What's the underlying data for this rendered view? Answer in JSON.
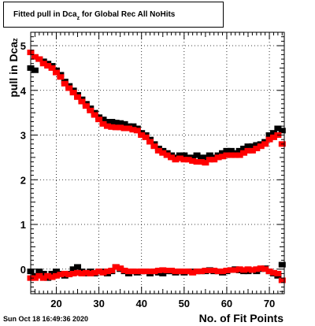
{
  "title": {
    "prefix": "Fitted pull in Dca",
    "subscript": "z",
    "suffix": " for Global Rec All NoHits"
  },
  "ylabel": {
    "main": "pull in Dca",
    "subscript": "z"
  },
  "xlabel": "No. of Fit Points",
  "datestamp": "Sun Oct 18 16:49:36 2020",
  "colors": {
    "series_black": "#000000",
    "series_red": "#ff0000",
    "grid": "#000000",
    "axis": "#000000"
  },
  "chart_data": {
    "type": "scatter",
    "xlabel": "No. of Fit Points",
    "ylabel": "pull in Dca_z",
    "xlim": [
      14,
      73.5
    ],
    "ylim": [
      -0.55,
      5.3
    ],
    "grid": true,
    "x_ticks": [
      20,
      30,
      40,
      50,
      60,
      70
    ],
    "y_ticks": [
      0,
      1,
      2,
      3,
      4,
      5
    ],
    "series": [
      {
        "color": "#000000",
        "x": [
          14,
          15,
          16,
          17,
          18,
          19,
          20,
          21,
          22,
          23,
          24,
          25,
          26,
          27,
          28,
          29,
          30,
          31,
          32,
          33,
          34,
          35,
          36,
          37,
          38,
          39,
          40,
          41,
          42,
          43,
          44,
          45,
          46,
          47,
          48,
          49,
          50,
          51,
          52,
          53,
          54,
          55,
          56,
          57,
          58,
          59,
          60,
          61,
          62,
          63,
          64,
          65,
          66,
          67,
          68,
          69,
          70,
          71,
          72,
          73
        ],
        "y": [
          4.5,
          4.45,
          4.7,
          4.65,
          4.6,
          4.55,
          4.45,
          4.35,
          4.2,
          4.1,
          4.0,
          3.9,
          3.8,
          3.7,
          3.6,
          3.5,
          3.4,
          3.35,
          3.3,
          3.3,
          3.28,
          3.27,
          3.25,
          3.2,
          3.2,
          3.15,
          3.05,
          3.0,
          2.9,
          2.8,
          2.7,
          2.65,
          2.6,
          2.55,
          2.5,
          2.55,
          2.55,
          2.5,
          2.5,
          2.55,
          2.5,
          2.5,
          2.55,
          2.5,
          2.55,
          2.6,
          2.65,
          2.65,
          2.6,
          2.65,
          2.7,
          2.75,
          2.75,
          2.78,
          2.8,
          2.85,
          3.0,
          3.05,
          3.15,
          3.1
        ]
      },
      {
        "color": "#ff0000",
        "x": [
          14,
          15,
          16,
          17,
          18,
          19,
          20,
          21,
          22,
          23,
          24,
          25,
          26,
          27,
          28,
          29,
          30,
          31,
          32,
          33,
          34,
          35,
          36,
          37,
          38,
          39,
          40,
          41,
          42,
          43,
          44,
          45,
          46,
          47,
          48,
          49,
          50,
          51,
          52,
          53,
          54,
          55,
          56,
          57,
          58,
          59,
          60,
          61,
          62,
          63,
          64,
          65,
          66,
          67,
          68,
          69,
          70,
          71,
          72,
          73
        ],
        "y": [
          4.85,
          4.75,
          4.7,
          4.6,
          4.55,
          4.5,
          4.4,
          4.3,
          4.15,
          4.05,
          3.95,
          3.85,
          3.75,
          3.65,
          3.55,
          3.45,
          3.35,
          3.25,
          3.2,
          3.18,
          3.17,
          3.17,
          3.15,
          3.15,
          3.12,
          3.1,
          3.0,
          2.95,
          2.85,
          2.75,
          2.65,
          2.6,
          2.55,
          2.5,
          2.45,
          2.48,
          2.45,
          2.45,
          2.42,
          2.4,
          2.4,
          2.38,
          2.45,
          2.45,
          2.5,
          2.52,
          2.55,
          2.55,
          2.55,
          2.55,
          2.6,
          2.65,
          2.65,
          2.7,
          2.75,
          2.8,
          2.9,
          2.95,
          3.0,
          2.8
        ]
      },
      {
        "color": "#000000",
        "x": [
          14,
          15,
          16,
          17,
          18,
          19,
          20,
          21,
          22,
          23,
          24,
          25,
          26,
          27,
          28,
          29,
          30,
          31,
          32,
          33,
          34,
          35,
          36,
          37,
          38,
          39,
          40,
          41,
          42,
          43,
          44,
          45,
          46,
          47,
          48,
          49,
          50,
          51,
          52,
          53,
          54,
          55,
          56,
          57,
          58,
          59,
          60,
          61,
          62,
          63,
          64,
          65,
          66,
          67,
          68,
          69,
          70,
          71,
          72,
          73
        ],
        "y": [
          -0.05,
          -0.15,
          -0.05,
          -0.1,
          -0.2,
          -0.1,
          -0.05,
          -0.1,
          -0.15,
          -0.1,
          0.0,
          0.05,
          -0.05,
          -0.1,
          -0.05,
          -0.1,
          -0.05,
          -0.05,
          -0.1,
          -0.05,
          0.05,
          0.0,
          -0.05,
          -0.1,
          -0.05,
          -0.08,
          -0.05,
          -0.05,
          -0.1,
          -0.05,
          -0.08,
          -0.1,
          -0.05,
          -0.05,
          -0.08,
          -0.05,
          -0.08,
          -0.05,
          -0.05,
          -0.05,
          -0.05,
          -0.05,
          -0.02,
          -0.05,
          -0.05,
          -0.08,
          -0.05,
          -0.02,
          0.0,
          -0.03,
          -0.05,
          -0.05,
          -0.02,
          -0.05,
          0.0,
          0.02,
          -0.05,
          -0.1,
          -0.15,
          0.1
        ]
      },
      {
        "color": "#ff0000",
        "x": [
          14,
          15,
          16,
          17,
          18,
          19,
          20,
          21,
          22,
          23,
          24,
          25,
          26,
          27,
          28,
          29,
          30,
          31,
          32,
          33,
          34,
          35,
          36,
          37,
          38,
          39,
          40,
          41,
          42,
          43,
          44,
          45,
          46,
          47,
          48,
          49,
          50,
          51,
          52,
          53,
          54,
          55,
          56,
          57,
          58,
          59,
          60,
          61,
          62,
          63,
          64,
          65,
          66,
          67,
          68,
          69,
          70,
          71,
          72,
          73
        ],
        "y": [
          -0.2,
          -0.2,
          -0.15,
          -0.2,
          -0.15,
          -0.18,
          -0.15,
          -0.12,
          -0.1,
          -0.12,
          -0.1,
          -0.08,
          -0.1,
          -0.08,
          -0.1,
          -0.08,
          -0.05,
          -0.08,
          -0.05,
          -0.03,
          0.05,
          0.02,
          -0.03,
          -0.05,
          -0.05,
          -0.05,
          -0.05,
          -0.05,
          -0.05,
          -0.05,
          -0.03,
          -0.02,
          -0.03,
          -0.03,
          -0.05,
          -0.05,
          -0.05,
          -0.05,
          -0.08,
          -0.05,
          -0.05,
          -0.03,
          -0.03,
          -0.03,
          -0.05,
          -0.05,
          -0.03,
          -0.02,
          -0.02,
          0.0,
          -0.02,
          0.0,
          -0.02,
          0.0,
          0.02,
          0.0,
          -0.05,
          -0.08,
          -0.1,
          -0.25
        ]
      }
    ]
  }
}
